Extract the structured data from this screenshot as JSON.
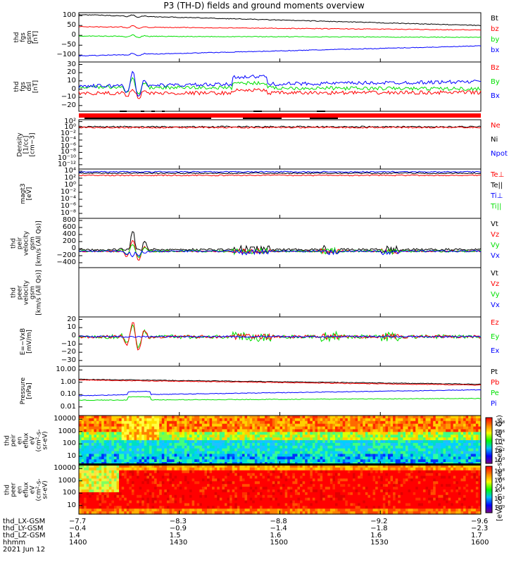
{
  "title": "P3 (TH-D) fields and ground moments overview",
  "colors": {
    "black": "#000000",
    "red": "#ff0000",
    "green": "#00e000",
    "blue": "#0000ff"
  },
  "chart_data": [
    {
      "type": "line",
      "panel": "fgs_gsm",
      "ylabel": "thd\nfgs\ngsm\n[nT]",
      "yticks": [
        "100",
        "50",
        "0",
        "−50",
        "−100"
      ],
      "ylim": [
        -100,
        100
      ],
      "series": [
        {
          "name": "Bt",
          "color": "black",
          "start": 92,
          "end": 48
        },
        {
          "name": "bz",
          "color": "red",
          "start": 43,
          "end": 30
        },
        {
          "name": "by",
          "color": "green",
          "start": 5,
          "end": 0
        },
        {
          "name": "bx",
          "color": "blue",
          "start": -75,
          "end": -35
        }
      ]
    },
    {
      "type": "line",
      "panel": "fgs_dsl",
      "ylabel": "thd\nfgs\ndsl\n[nT]",
      "yticks": [
        "30",
        "20",
        "10",
        "0",
        "−10",
        "−20"
      ],
      "ylim": [
        -25,
        30
      ],
      "series": [
        {
          "name": "Bz",
          "color": "red",
          "start": -5,
          "end": -4
        },
        {
          "name": "By",
          "color": "green",
          "start": 2,
          "end": 0
        },
        {
          "name": "Bx",
          "color": "blue",
          "start": 3,
          "end": 8
        }
      ]
    },
    {
      "type": "line",
      "panel": "density",
      "ylabel": "Density\n[1/cc]\n[cm−3]",
      "yticks": [
        "10²",
        "10⁰",
        "10⁻²",
        "10⁻⁴",
        "10⁻⁶",
        "10⁻⁸",
        "10⁻¹⁰",
        "10⁻¹²"
      ],
      "series": [
        {
          "name": "Ne",
          "color": "red"
        },
        {
          "name": "Ni",
          "color": "black"
        },
        {
          "name": "Npot",
          "color": "blue"
        }
      ]
    },
    {
      "type": "line",
      "panel": "temperature",
      "ylabel": "magt3\n[eV]",
      "yticks": [
        "10⁴",
        "10²",
        "10⁰",
        "10⁻²",
        "10⁻⁴",
        "10⁻⁶",
        "10⁻⁸"
      ],
      "series": [
        {
          "name": "Te⊥",
          "color": "red"
        },
        {
          "name": "Te||",
          "color": "black"
        },
        {
          "name": "Ti⊥",
          "color": "blue"
        },
        {
          "name": "Ti||",
          "color": "green"
        }
      ]
    },
    {
      "type": "line",
      "panel": "ion_velocity",
      "ylabel": "thd\npeir\nvelocity\ngsm\n[km/s (All Qs)]",
      "yticks": [
        "800",
        "600",
        "400",
        "200",
        "0",
        "−200",
        "−400"
      ],
      "ylim": [
        -400,
        800
      ],
      "series": [
        {
          "name": "Vt",
          "color": "black"
        },
        {
          "name": "Vz",
          "color": "red"
        },
        {
          "name": "Vy",
          "color": "green"
        },
        {
          "name": "Vx",
          "color": "blue"
        }
      ]
    },
    {
      "type": "line",
      "panel": "electron_velocity",
      "ylabel": "thd\npeer\nvelocity\ngsm\n[km/s (All Qs)]",
      "yticks": [],
      "series": [
        {
          "name": "Vt",
          "color": "black"
        },
        {
          "name": "Vz",
          "color": "red"
        },
        {
          "name": "Vy",
          "color": "green"
        },
        {
          "name": "Vx",
          "color": "blue"
        }
      ]
    },
    {
      "type": "line",
      "panel": "efield",
      "ylabel": "E=−VxB\n[mV/m]",
      "yticks": [
        "20",
        "10",
        "0",
        "−10",
        "−20",
        "−30"
      ],
      "ylim": [
        -30,
        20
      ],
      "series": [
        {
          "name": "Ez",
          "color": "red"
        },
        {
          "name": "Ey",
          "color": "green"
        },
        {
          "name": "Ex",
          "color": "blue"
        }
      ]
    },
    {
      "type": "line",
      "panel": "pressure",
      "ylabel": "Pressure\n[nPa]",
      "yticks": [
        "10.00",
        "1.00",
        "0.10",
        "0.01"
      ],
      "ylog": true,
      "series": [
        {
          "name": "Pt",
          "color": "black",
          "start": 2.5,
          "end": 1.0
        },
        {
          "name": "Pb",
          "color": "red",
          "start": 2.2,
          "end": 0.85
        },
        {
          "name": "Pe",
          "color": "green",
          "start": 0.05,
          "end": 0.07
        },
        {
          "name": "Pi",
          "color": "blue",
          "start": 0.12,
          "end": 0.35
        }
      ]
    },
    {
      "type": "heatmap",
      "panel": "ion_spectrogram",
      "ylabel": "thd\npeir\nen\neflux\neV\n(cm²-s-\nsr-eV)",
      "yticks": [
        "10000",
        "1000",
        "100",
        "10"
      ]
    },
    {
      "type": "heatmap",
      "panel": "electron_spectrogram",
      "ylabel": "thd\npeer\nen\neflux\neV\n(cm²-s-\nsr-eV)",
      "yticks": [
        "10000",
        "1000",
        "100",
        "10"
      ]
    }
  ],
  "colorbar": {
    "label": "[eV/(cm^2-sec-sr-eV)] (All Qs)",
    "ticks_top": [
      "10⁸",
      "10⁶",
      "10⁴",
      "10²",
      "10⁰"
    ],
    "ticks_bottom": [
      "10⁸",
      "10⁶",
      "10⁴",
      "10²",
      "10⁰"
    ]
  },
  "footer": {
    "rows": [
      {
        "label": "thd_LX-GSM",
        "values": [
          "−7.7",
          "−8.3",
          "−8.8",
          "−9.2",
          "−9.6"
        ]
      },
      {
        "label": "thd_LY-GSM",
        "values": [
          "−0.4",
          "−0.9",
          "−1.4",
          "−1.8",
          "−2.3"
        ]
      },
      {
        "label": "thd_LZ-GSM",
        "values": [
          "1.4",
          "1.5",
          "1.6",
          "1.6",
          "1.7"
        ]
      },
      {
        "label": "hhmm",
        "values": [
          "1400",
          "1430",
          "1500",
          "1530",
          "1600"
        ]
      }
    ],
    "date": "2021 Jun 12"
  }
}
